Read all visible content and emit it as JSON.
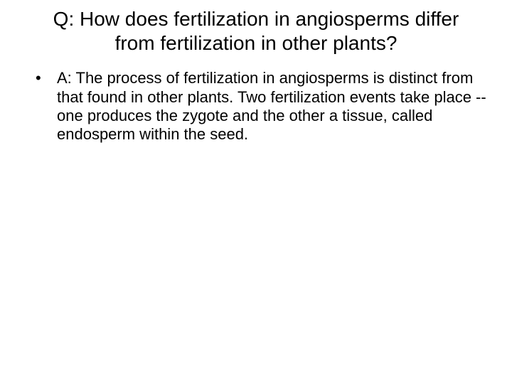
{
  "slide": {
    "title": "Q: How does fertilization in angiosperms differ from fertilization in other plants?",
    "body_item": "A: The process of fertilization in angiosperms is distinct from that found in other plants.  Two fertilization events take place --one produces the zygote and the other a tissue, called endosperm within the seed.",
    "background_color": "#ffffff",
    "text_color": "#000000",
    "title_fontsize": 28,
    "body_fontsize": 22,
    "font_family": "Arial"
  }
}
